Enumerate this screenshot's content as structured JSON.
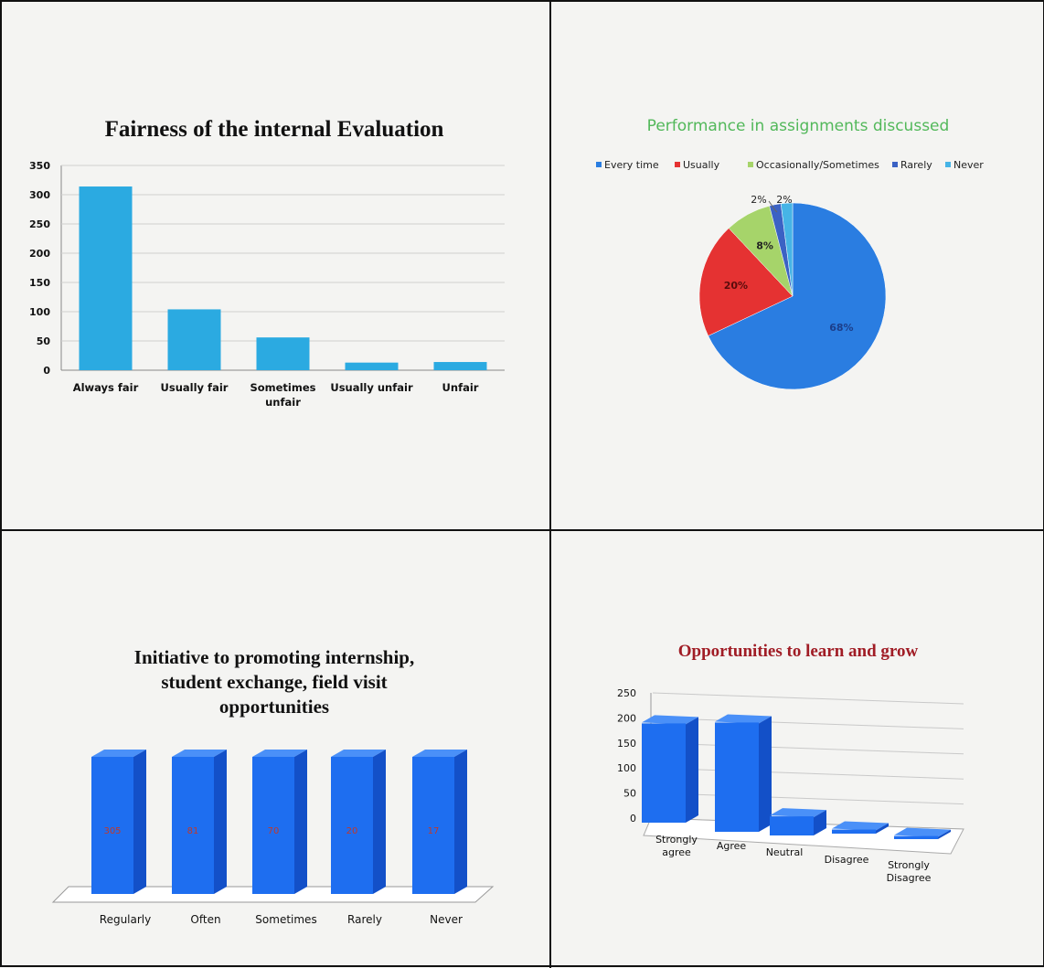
{
  "colors": {
    "bar": "#2baae1",
    "bar3d_front": "#1e6ef0",
    "bar3d_side": "#1350c8",
    "bar3d_top": "#4a90f8",
    "pie_blue": "#2a7de1",
    "pie_red": "#e53232",
    "pie_green": "#a6d46a",
    "pie_rarely": "#3b62c4",
    "pie_never": "#46b4e6",
    "title_green": "#52b85a",
    "title_red": "#a01c25",
    "label_red": "#c0392b"
  },
  "chart_data": [
    {
      "type": "bar",
      "title": "Fairness of the internal Evaluation",
      "categories": [
        "Always fair",
        "Usually fair",
        "Sometimes unfair",
        "Usually unfair",
        "Unfair"
      ],
      "category_lines": [
        [
          "Always fair"
        ],
        [
          "Usually fair"
        ],
        [
          "Sometimes",
          "unfair"
        ],
        [
          "Usually unfair"
        ],
        [
          "Unfair"
        ]
      ],
      "values": [
        314,
        104,
        56,
        13,
        14
      ],
      "ylim": [
        0,
        350
      ],
      "yticks": [
        "0",
        "50",
        "100",
        "150",
        "200",
        "250",
        "300",
        "350"
      ],
      "grid": true
    },
    {
      "type": "pie",
      "title": "Performance in assignments discussed",
      "legend": [
        "Every time",
        "Usually",
        "Occasionally/Sometimes",
        "Rarely",
        "Never"
      ],
      "values": [
        68,
        20,
        8,
        2,
        2
      ],
      "labels": [
        "68%",
        "20%",
        "8%",
        "2%",
        "2%"
      ],
      "legend_placement": "top"
    },
    {
      "type": "bar",
      "title": "Initiative to promoting internship, student exchange, field visit opportunities",
      "title_lines": [
        "Initiative to promoting internship,",
        "student exchange, field visit",
        "opportunities"
      ],
      "categories": [
        "Regularly",
        "Often",
        "Sometimes",
        "Rarely",
        "Never"
      ],
      "values": [
        305,
        81,
        70,
        20,
        17
      ],
      "data_labels": [
        "305",
        "81",
        "70",
        "20",
        "17"
      ]
    },
    {
      "type": "bar",
      "title": "Opportunities to learn and grow",
      "categories": [
        "Strongly agree",
        "Agree",
        "Neutral",
        "Disagree",
        "Strongly Disagree"
      ],
      "category_lines": [
        [
          "Strongly",
          "agree"
        ],
        [
          "Agree"
        ],
        [
          "Neutral"
        ],
        [
          "Disagree"
        ],
        [
          "Strongly",
          "Disagree"
        ]
      ],
      "values": [
        200,
        220,
        40,
        10,
        8
      ],
      "ylim": [
        0,
        250
      ],
      "yticks": [
        "0",
        "50",
        "100",
        "150",
        "200",
        "250"
      ],
      "grid": true
    }
  ]
}
